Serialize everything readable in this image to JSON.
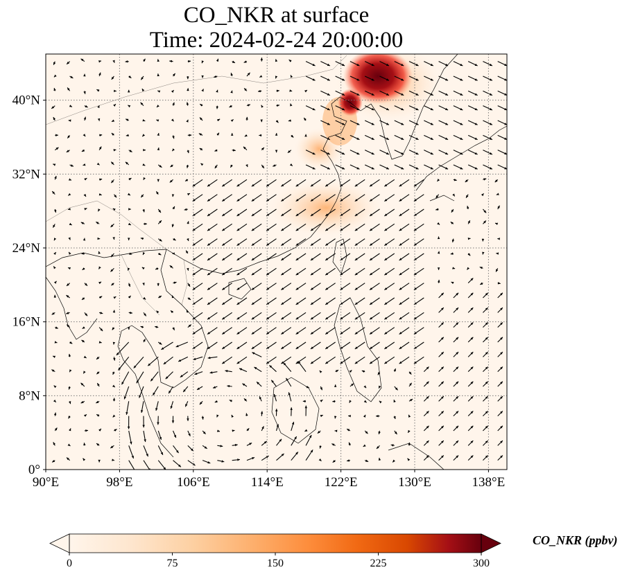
{
  "title": {
    "line1": "CO_NKR at surface",
    "line2": "Time: 2024-02-24 20:00:00"
  },
  "map": {
    "lon_range": [
      90,
      140
    ],
    "lat_range": [
      0,
      45
    ],
    "lon_ticks": [
      {
        "value": 90,
        "label": "90°E"
      },
      {
        "value": 98,
        "label": "98°E"
      },
      {
        "value": 106,
        "label": "106°E"
      },
      {
        "value": 114,
        "label": "114°E"
      },
      {
        "value": 122,
        "label": "122°E"
      },
      {
        "value": 130,
        "label": "130°E"
      },
      {
        "value": 138,
        "label": "138°E"
      }
    ],
    "lat_ticks": [
      {
        "value": 0,
        "label": "0°"
      },
      {
        "value": 8,
        "label": "8°N"
      },
      {
        "value": 16,
        "label": "16°N"
      },
      {
        "value": 24,
        "label": "24°N"
      },
      {
        "value": 32,
        "label": "32°N"
      },
      {
        "value": 40,
        "label": "40°N"
      }
    ],
    "gridlines": true,
    "background_color": "#fff5eb",
    "plume_color": "#a50f15"
  },
  "colorbar": {
    "title": "CO_NKR (ppbv)",
    "ticks": [
      "0",
      "75",
      "150",
      "225",
      "300"
    ],
    "range": [
      0,
      300
    ],
    "extend": "both",
    "colors": [
      "#fff5eb",
      "#fee6ce",
      "#fdd0a2",
      "#fdae6b",
      "#fd8d3c",
      "#f16913",
      "#d94801",
      "#a50f15",
      "#67000d"
    ]
  }
}
